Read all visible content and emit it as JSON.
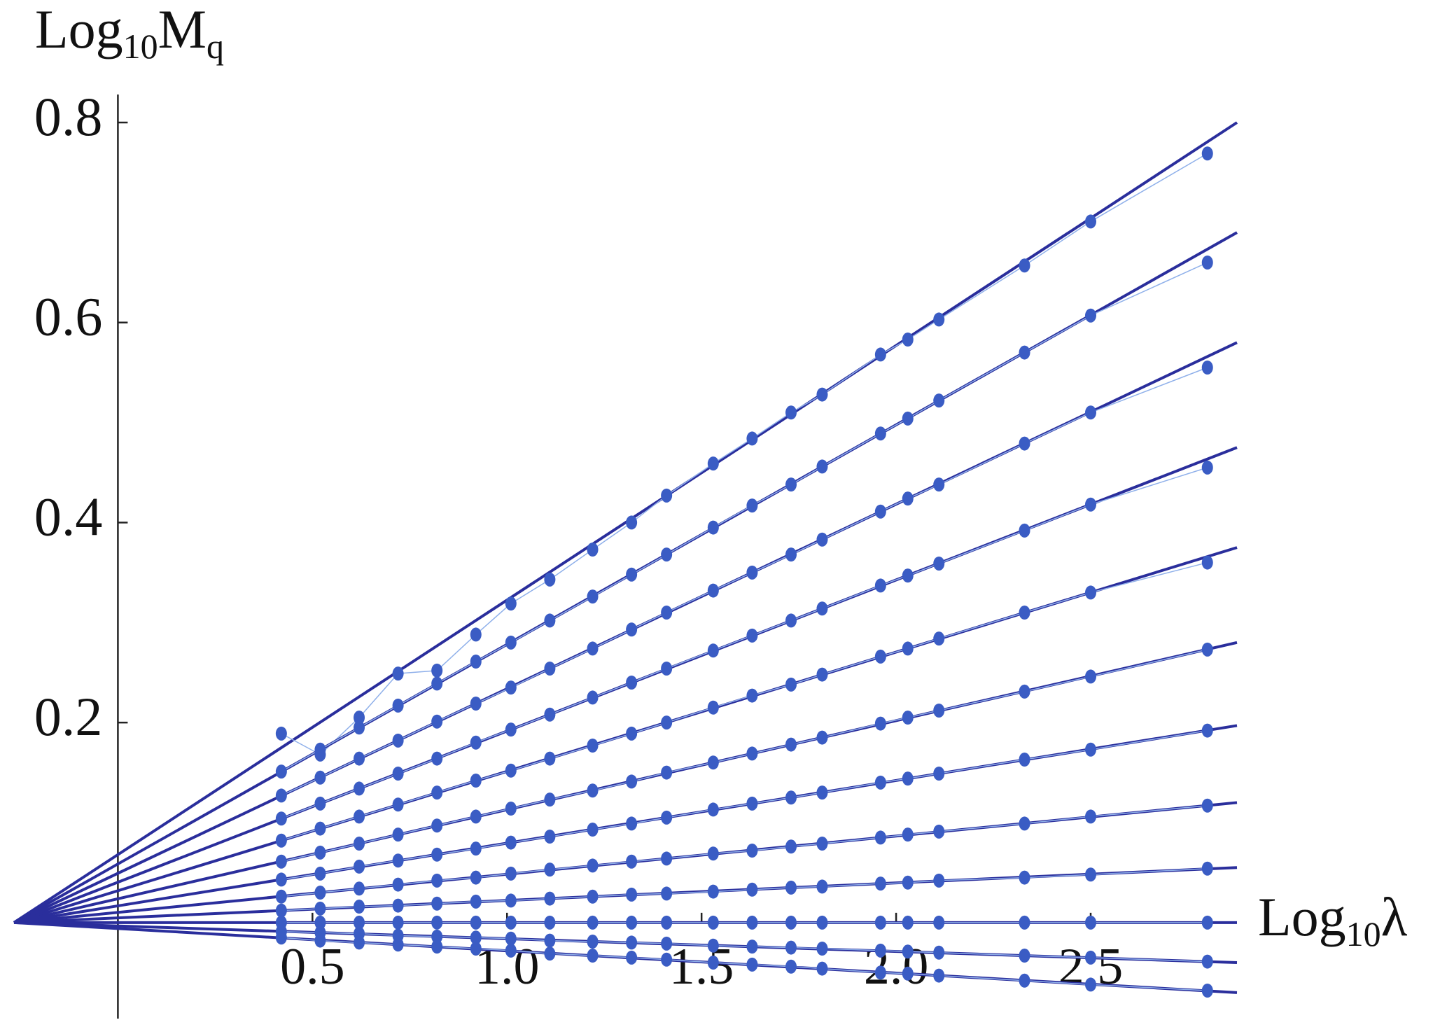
{
  "chart_data": {
    "type": "scatter",
    "x_label_parts": [
      "Log",
      "10",
      "λ"
    ],
    "y_label_parts": [
      "Log",
      "10",
      "M",
      "q"
    ],
    "xlim": [
      -0.267,
      2.876
    ],
    "ylim": [
      -0.096,
      0.828
    ],
    "xticks": [
      0.5,
      {
        "value": 1,
        "label": "1.0"
      },
      1.5,
      {
        "value": 2,
        "label": "2.0"
      },
      2.5
    ],
    "yticks": [
      0.2,
      0.4,
      0.6,
      0.8
    ],
    "point_color": "#3a5cc4",
    "connector_color": "#8fb0ea",
    "fit_color": "#2a2e9c",
    "fit_x": [
      -0.267,
      2.876
    ],
    "x": [
      0.42,
      0.52,
      0.62,
      0.72,
      0.82,
      0.92,
      1.01,
      1.11,
      1.22,
      1.32,
      1.41,
      1.53,
      1.63,
      1.73,
      1.81,
      1.96,
      2.03,
      2.11,
      2.33,
      2.5,
      2.8
    ],
    "series": [
      {
        "fit": [
          0,
          0.8
        ],
        "values": [
          0.189,
          0.168,
          0.205,
          0.249,
          0.252,
          0.288,
          0.319,
          0.343,
          0.373,
          0.4,
          0.427,
          0.459,
          0.484,
          0.51,
          0.528,
          0.568,
          0.583,
          0.603,
          0.657,
          0.701,
          0.769
        ]
      },
      {
        "fit": [
          0,
          0.69
        ],
        "values": [
          0.151,
          0.173,
          0.195,
          0.217,
          0.239,
          0.261,
          0.28,
          0.302,
          0.326,
          0.348,
          0.368,
          0.395,
          0.417,
          0.438,
          0.456,
          0.489,
          0.504,
          0.522,
          0.57,
          0.607,
          0.66
        ]
      },
      {
        "fit": [
          0,
          0.58
        ],
        "values": [
          0.127,
          0.145,
          0.164,
          0.182,
          0.201,
          0.219,
          0.235,
          0.254,
          0.274,
          0.293,
          0.31,
          0.332,
          0.35,
          0.368,
          0.383,
          0.411,
          0.424,
          0.438,
          0.479,
          0.51,
          0.555
        ]
      },
      {
        "fit": [
          0,
          0.475
        ],
        "values": [
          0.104,
          0.119,
          0.134,
          0.149,
          0.164,
          0.18,
          0.193,
          0.208,
          0.225,
          0.24,
          0.254,
          0.272,
          0.287,
          0.302,
          0.314,
          0.337,
          0.347,
          0.359,
          0.392,
          0.418,
          0.455
        ]
      },
      {
        "fit": [
          0,
          0.375
        ],
        "values": [
          0.082,
          0.094,
          0.106,
          0.118,
          0.13,
          0.142,
          0.152,
          0.164,
          0.177,
          0.189,
          0.2,
          0.215,
          0.227,
          0.238,
          0.248,
          0.266,
          0.274,
          0.284,
          0.31,
          0.33,
          0.36
        ]
      },
      {
        "fit": [
          0,
          0.28
        ],
        "values": [
          0.061,
          0.07,
          0.079,
          0.088,
          0.097,
          0.106,
          0.114,
          0.123,
          0.132,
          0.141,
          0.15,
          0.16,
          0.169,
          0.178,
          0.185,
          0.199,
          0.205,
          0.212,
          0.231,
          0.246,
          0.273
        ]
      },
      {
        "fit": [
          0,
          0.197
        ],
        "values": [
          0.043,
          0.049,
          0.056,
          0.062,
          0.068,
          0.074,
          0.08,
          0.086,
          0.093,
          0.099,
          0.105,
          0.113,
          0.119,
          0.125,
          0.13,
          0.14,
          0.144,
          0.149,
          0.163,
          0.173,
          0.192
        ]
      },
      {
        "fit": [
          0,
          0.12
        ],
        "values": [
          0.026,
          0.03,
          0.034,
          0.038,
          0.042,
          0.045,
          0.049,
          0.053,
          0.057,
          0.061,
          0.064,
          0.069,
          0.072,
          0.076,
          0.079,
          0.085,
          0.088,
          0.091,
          0.099,
          0.106,
          0.117
        ]
      },
      {
        "fit": [
          0,
          0.055
        ],
        "values": [
          0.012,
          0.014,
          0.016,
          0.017,
          0.019,
          0.021,
          0.022,
          0.024,
          0.026,
          0.028,
          0.029,
          0.031,
          0.033,
          0.035,
          0.036,
          0.039,
          0.04,
          0.042,
          0.045,
          0.048,
          0.054
        ]
      },
      {
        "fit": [
          0,
          0
        ],
        "values": [
          0,
          0,
          0,
          0,
          0,
          0,
          0,
          0,
          0,
          0,
          0,
          0,
          0,
          0,
          0,
          0,
          0,
          0,
          0,
          0,
          0
        ]
      },
      {
        "fit": [
          0,
          -0.04
        ],
        "values": [
          -0.009,
          -0.01,
          -0.011,
          -0.013,
          -0.014,
          -0.015,
          -0.016,
          -0.018,
          -0.019,
          -0.02,
          -0.021,
          -0.023,
          -0.024,
          -0.025,
          -0.026,
          -0.028,
          -0.029,
          -0.03,
          -0.033,
          -0.035,
          -0.039
        ]
      },
      {
        "fit": [
          0,
          -0.07
        ],
        "values": [
          -0.015,
          -0.018,
          -0.02,
          -0.022,
          -0.024,
          -0.026,
          -0.028,
          -0.031,
          -0.033,
          -0.035,
          -0.037,
          -0.04,
          -0.042,
          -0.044,
          -0.046,
          -0.05,
          -0.051,
          -0.053,
          -0.058,
          -0.062,
          -0.068
        ]
      }
    ]
  }
}
